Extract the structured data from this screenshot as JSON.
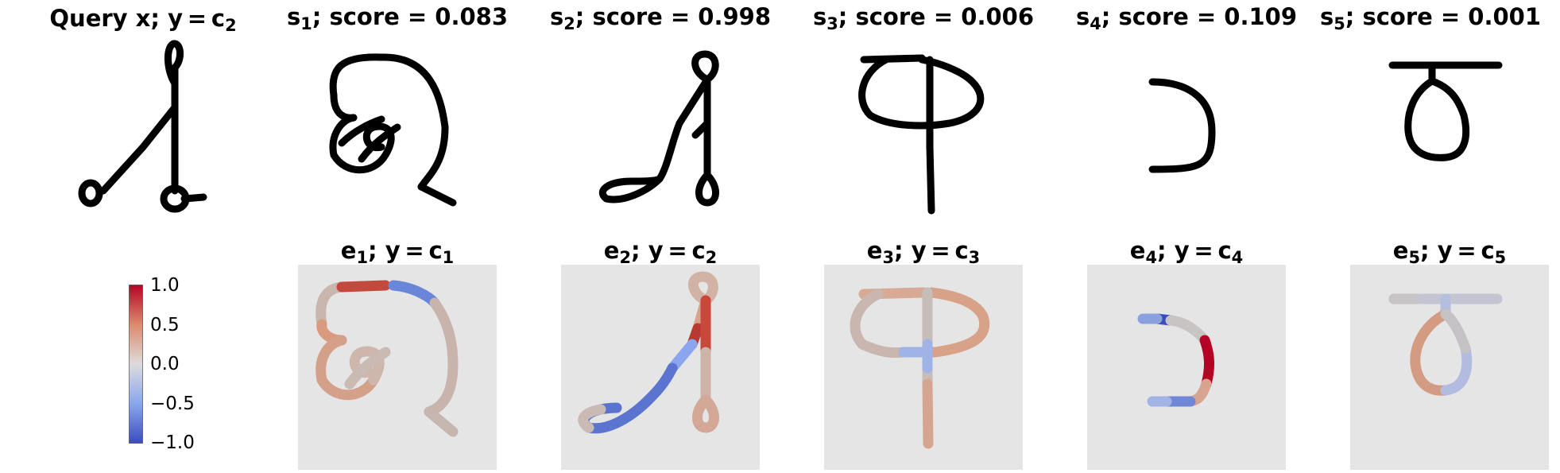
{
  "query": {
    "prefix": "Query x; y = c",
    "sub": "2"
  },
  "supports": [
    {
      "label": "s",
      "sub": "1",
      "score_text": "; score = 0.083"
    },
    {
      "label": "s",
      "sub": "2",
      "score_text": "; score = 0.998"
    },
    {
      "label": "s",
      "sub": "3",
      "score_text": "; score = 0.006"
    },
    {
      "label": "s",
      "sub": "4",
      "score_text": "; score = 0.109"
    },
    {
      "label": "s",
      "sub": "5",
      "score_text": "; score = 0.001"
    }
  ],
  "explanations": [
    {
      "label": "e",
      "sub": "1",
      "mid": "; y = c",
      "csub": "1"
    },
    {
      "label": "e",
      "sub": "2",
      "mid": "; y = c",
      "csub": "2"
    },
    {
      "label": "e",
      "sub": "3",
      "mid": "; y = c",
      "csub": "3"
    },
    {
      "label": "e",
      "sub": "4",
      "mid": "; y = c",
      "csub": "4"
    },
    {
      "label": "e",
      "sub": "5",
      "mid": "; y = c",
      "csub": "5"
    }
  ],
  "colorbar": {
    "ticks": [
      "1.0",
      "0.5",
      "0.0",
      "−0.5",
      "−1.0"
    ],
    "colormap": [
      "#b40426",
      "#dd8a6d",
      "#dddcdc",
      "#8aa6ee",
      "#3b4cc0"
    ]
  }
}
